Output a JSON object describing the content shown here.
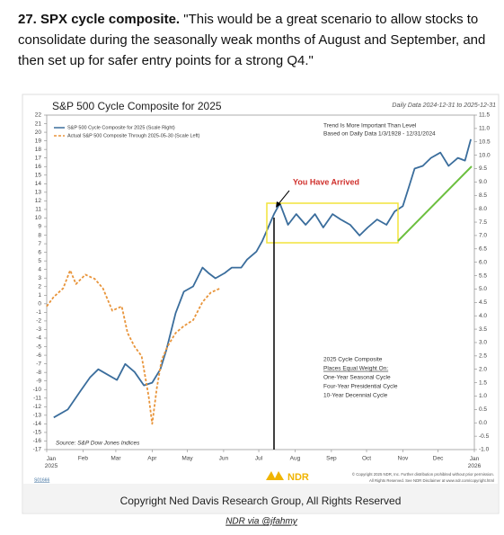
{
  "paragraph": {
    "lead": "27. SPX cycle composite.",
    "text": "\"This would be a great scenario to allow stocks to consolidate during the seasonally weak months of August and September, and then set up for safer entry points for a strong Q4.\""
  },
  "chart_data": {
    "type": "line",
    "title": "S&P 500 Cycle Composite for 2025",
    "subtitle": "Daily Data 2024-12-31 to 2025-12-31",
    "xlim": [
      0,
      365
    ],
    "xticks": [
      {
        "value": 0,
        "label": "Jan 2025"
      },
      {
        "value": 31,
        "label": "Feb"
      },
      {
        "value": 59,
        "label": "Mar"
      },
      {
        "value": 90,
        "label": "Apr"
      },
      {
        "value": 120,
        "label": "May"
      },
      {
        "value": 151,
        "label": "Jun"
      },
      {
        "value": 181,
        "label": "Jul"
      },
      {
        "value": 212,
        "label": "Aug"
      },
      {
        "value": 243,
        "label": "Sep"
      },
      {
        "value": 273,
        "label": "Oct"
      },
      {
        "value": 304,
        "label": "Nov"
      },
      {
        "value": 334,
        "label": "Dec"
      },
      {
        "value": 365,
        "label": "Jan 2026"
      }
    ],
    "ylim": [
      -17,
      22
    ],
    "yticks": [
      -17,
      -16,
      -15,
      -14,
      -13,
      -12,
      -11,
      -10,
      -9,
      -8,
      -7,
      -6,
      -5,
      -4,
      -3,
      -2,
      -1,
      0,
      1,
      2,
      3,
      4,
      5,
      6,
      7,
      8,
      9,
      10,
      11,
      12,
      13,
      14,
      15,
      16,
      17,
      18,
      19,
      20,
      21,
      22
    ],
    "y2lim": [
      -1,
      11.5
    ],
    "y2ticks": [
      {
        "value": -1,
        "label": "-1.0"
      },
      -0.5,
      {
        "value": 0,
        "label": "0.0"
      },
      0.5,
      {
        "value": 1,
        "label": "1.0"
      },
      1.5,
      {
        "value": 2,
        "label": "2.0"
      },
      2.5,
      {
        "value": 3,
        "label": "3.0"
      },
      3.5,
      {
        "value": 4,
        "label": "4.0"
      },
      4.5,
      {
        "value": 5,
        "label": "5.0"
      },
      5.5,
      {
        "value": 6,
        "label": "6.0"
      },
      6.5,
      {
        "value": 7,
        "label": "7.0"
      },
      7.5,
      {
        "value": 8,
        "label": "8.0"
      },
      8.5,
      {
        "value": 9,
        "label": "9.0"
      },
      9.5,
      {
        "value": 10,
        "label": "10.0"
      },
      10.5,
      {
        "value": 11,
        "label": "11.0"
      },
      11.5
    ],
    "series": [
      {
        "name": "S&P 500 Cycle Composite for 2025 (Scale Right)",
        "color": "#3a6d9c",
        "axis": "y2",
        "dash": false,
        "x": [
          6,
          18,
          29,
          37,
          44,
          52,
          60,
          67,
          75,
          83,
          90,
          97,
          102,
          110,
          117,
          125,
          133,
          138,
          144,
          152,
          158,
          166,
          171,
          179,
          184,
          189,
          194,
          199,
          206,
          213,
          221,
          229,
          236,
          244,
          251,
          259,
          267,
          274,
          282,
          290,
          297,
          304,
          309,
          314,
          321,
          328,
          336,
          343,
          351,
          357,
          362
        ],
        "values": [
          0.2,
          0.5,
          1.2,
          1.7,
          2.0,
          1.8,
          1.6,
          2.2,
          1.9,
          1.4,
          1.5,
          2.0,
          2.7,
          4.1,
          4.9,
          5.1,
          5.8,
          5.6,
          5.4,
          5.6,
          5.8,
          5.8,
          6.1,
          6.4,
          6.8,
          7.3,
          7.8,
          8.2,
          7.4,
          7.8,
          7.4,
          7.8,
          7.3,
          7.8,
          7.6,
          7.4,
          7.0,
          7.3,
          7.6,
          7.4,
          7.9,
          8.1,
          8.8,
          9.5,
          9.6,
          9.9,
          10.1,
          9.6,
          9.9,
          9.8,
          10.6
        ]
      },
      {
        "name": "Actual S&P 500 Composite Through 2025-05-30 (Scale Left)",
        "color": "#e8943a",
        "axis": "y",
        "dash": true,
        "x": [
          0,
          6,
          14,
          20,
          25,
          33,
          41,
          48,
          56,
          64,
          69,
          75,
          81,
          87,
          90,
          94,
          98,
          103,
          110,
          117,
          125,
          133,
          140,
          148
        ],
        "values": [
          -0.3,
          0.8,
          1.8,
          3.9,
          2.3,
          3.4,
          2.9,
          1.8,
          -0.8,
          -0.3,
          -3.4,
          -5.0,
          -6.1,
          -10.8,
          -14.0,
          -9.8,
          -6.6,
          -5.0,
          -3.4,
          -2.6,
          -1.9,
          0.2,
          1.3,
          1.8
        ]
      }
    ],
    "annotations": {
      "callout": "You Have Arrived",
      "note": [
        "Trend Is More Important Than Level",
        "Based on Daily Data 1/3/1928 - 12/31/2024"
      ],
      "composite": [
        "2025 Cycle Composite",
        "Places Equal Weight On:",
        "One-Year Seasonal Cycle",
        "Four-Year Presidential Cycle",
        "10-Year Decennial Cycle"
      ],
      "source": "Source: S&P Dow Jones Indices",
      "notice": [
        "© Copyright 2025 NDR, Inc. Further distribution prohibited without prior permission.",
        "All Rights Reserved. See NDR Disclaimer at www.ndr.com/copyright.html"
      ],
      "chart_id": "S01666",
      "logo": "NDR"
    }
  },
  "copyright": "Copyright Ned Davis Research Group, All Rights Reserved",
  "caption": "NDR via @jfahmy"
}
